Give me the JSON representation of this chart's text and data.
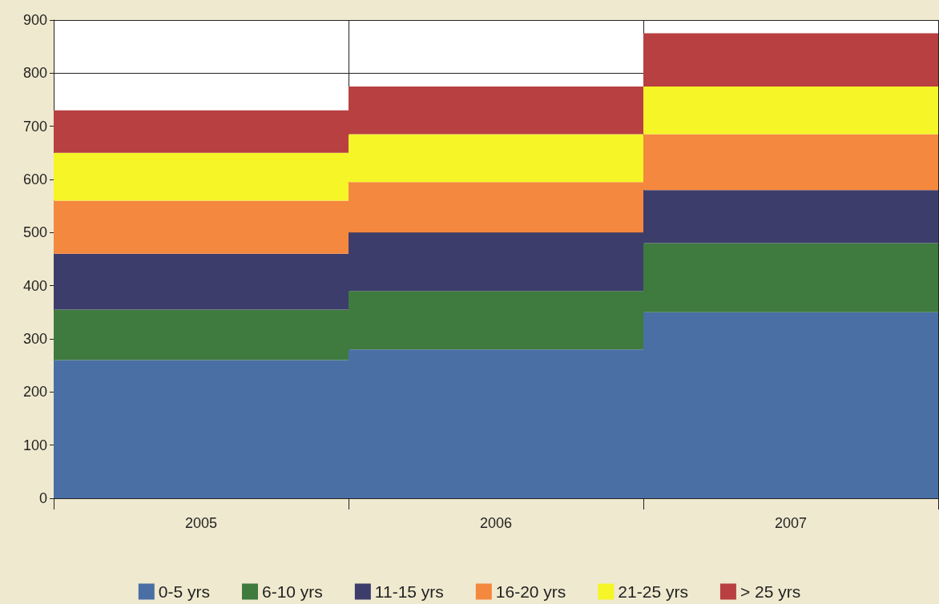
{
  "chart_data": {
    "type": "bar",
    "stacked": true,
    "categories": [
      "2005",
      "2006",
      "2007"
    ],
    "series": [
      {
        "name": "0-5 yrs",
        "color": "#4a6fa5",
        "values": [
          260,
          280,
          350
        ]
      },
      {
        "name": "6-10 yrs",
        "color": "#3f7a3f",
        "values": [
          95,
          110,
          130
        ]
      },
      {
        "name": "11-15 yrs",
        "color": "#3d3d6b",
        "values": [
          105,
          110,
          100
        ]
      },
      {
        "name": "16-20 yrs",
        "color": "#f5883f",
        "values": [
          100,
          95,
          105
        ]
      },
      {
        "name": "21-25 yrs",
        "color": "#f5f528",
        "values": [
          90,
          90,
          90
        ]
      },
      {
        "name": "> 25 yrs",
        "color": "#b84040",
        "values": [
          80,
          90,
          100
        ]
      }
    ],
    "ylim": [
      0,
      900
    ],
    "yticks": [
      0,
      100,
      200,
      300,
      400,
      500,
      600,
      700,
      800,
      900
    ],
    "grid": true,
    "legend": "bottom"
  }
}
